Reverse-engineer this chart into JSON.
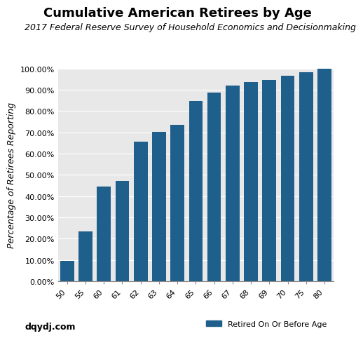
{
  "title": "Cumulative American Retirees by Age",
  "subtitle": "2017 Federal Reserve Survey of Household Economics and Decisionmaking",
  "ylabel": "Percentage of Retirees Reporting",
  "categories": [
    "50",
    "55",
    "60",
    "61",
    "62",
    "63",
    "64",
    "65",
    "66",
    "67",
    "68",
    "69",
    "70",
    "75",
    "80"
  ],
  "values": [
    0.0975,
    0.234,
    0.445,
    0.47,
    0.655,
    0.703,
    0.736,
    0.848,
    0.888,
    0.92,
    0.935,
    0.947,
    0.967,
    0.983,
    1.0
  ],
  "bar_color": "#1f5f8b",
  "background_color": "#e8e8e8",
  "fig_background": "#ffffff",
  "ylim": [
    0,
    1.0
  ],
  "ytick_labels": [
    "0.00%",
    "10.00%",
    "20.00%",
    "30.00%",
    "40.00%",
    "50.00%",
    "60.00%",
    "70.00%",
    "80.00%",
    "90.00%",
    "100.00%"
  ],
  "ytick_values": [
    0.0,
    0.1,
    0.2,
    0.3,
    0.4,
    0.5,
    0.6,
    0.7,
    0.8,
    0.9,
    1.0
  ],
  "legend_label": "Retired On Or Before Age",
  "source_label": "dqydj.com",
  "title_fontsize": 13,
  "subtitle_fontsize": 9,
  "ylabel_fontsize": 9,
  "tick_fontsize": 8,
  "source_fontsize": 9,
  "legend_fontsize": 8
}
